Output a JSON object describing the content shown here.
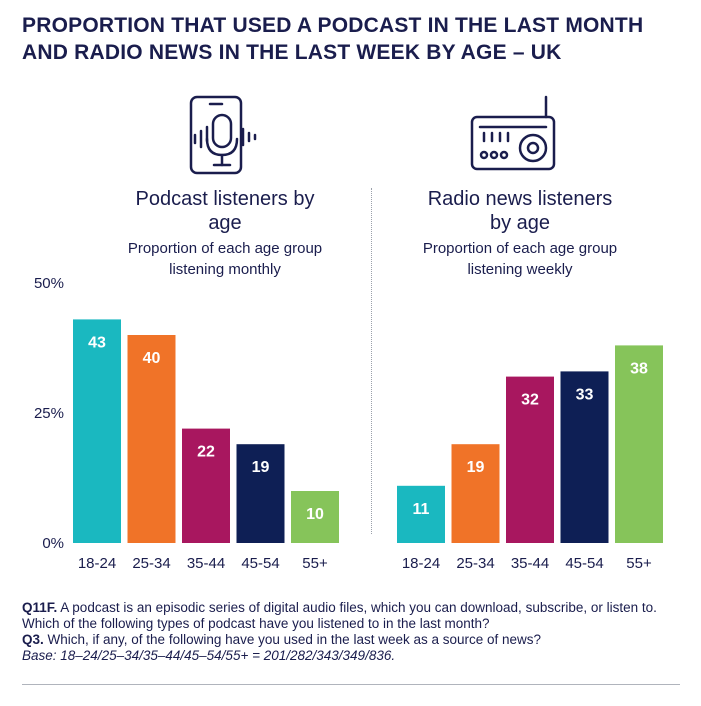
{
  "title": "PROPORTION THAT USED A PODCAST IN THE LAST MONTH AND RADIO NEWS IN THE LAST WEEK BY AGE – UK",
  "chart_data": [
    {
      "type": "bar",
      "title": "Podcast listeners by age",
      "subtitle": "Proportion of each age group listening monthly",
      "categories": [
        "18-24",
        "25-34",
        "35-44",
        "45-54",
        "55+"
      ],
      "values": [
        43,
        40,
        22,
        19,
        10
      ],
      "colors": [
        "#1ab8c0",
        "#f07328",
        "#a8175f",
        "#0e1f55",
        "#86c45a"
      ],
      "ylim": [
        0,
        50
      ],
      "yticks": [
        "0%",
        "25%",
        "50%"
      ],
      "icon": "smartphone-microphone-icon"
    },
    {
      "type": "bar",
      "title": "Radio news listeners by age",
      "subtitle": "Proportion of each age group listening weekly",
      "categories": [
        "18-24",
        "25-34",
        "35-44",
        "45-54",
        "55+"
      ],
      "values": [
        11,
        19,
        32,
        33,
        38
      ],
      "colors": [
        "#1ab8c0",
        "#f07328",
        "#a8175f",
        "#0e1f55",
        "#86c45a"
      ],
      "ylim": [
        0,
        50
      ],
      "icon": "radio-icon"
    }
  ],
  "footnote": {
    "q11f_label": "Q11F.",
    "q11f_text": " A podcast is an episodic series of digital audio files, which you can download, subscribe, or listen to. Which of the following types of podcast have you listened to in the last month?",
    "q3_label": "Q3.",
    "q3_text": " Which, if any, of the following have you used in the last week as a source of news?",
    "base": "Base: 18–24/25–34/35–44/45–54/55+ = 201/282/343/349/836."
  }
}
